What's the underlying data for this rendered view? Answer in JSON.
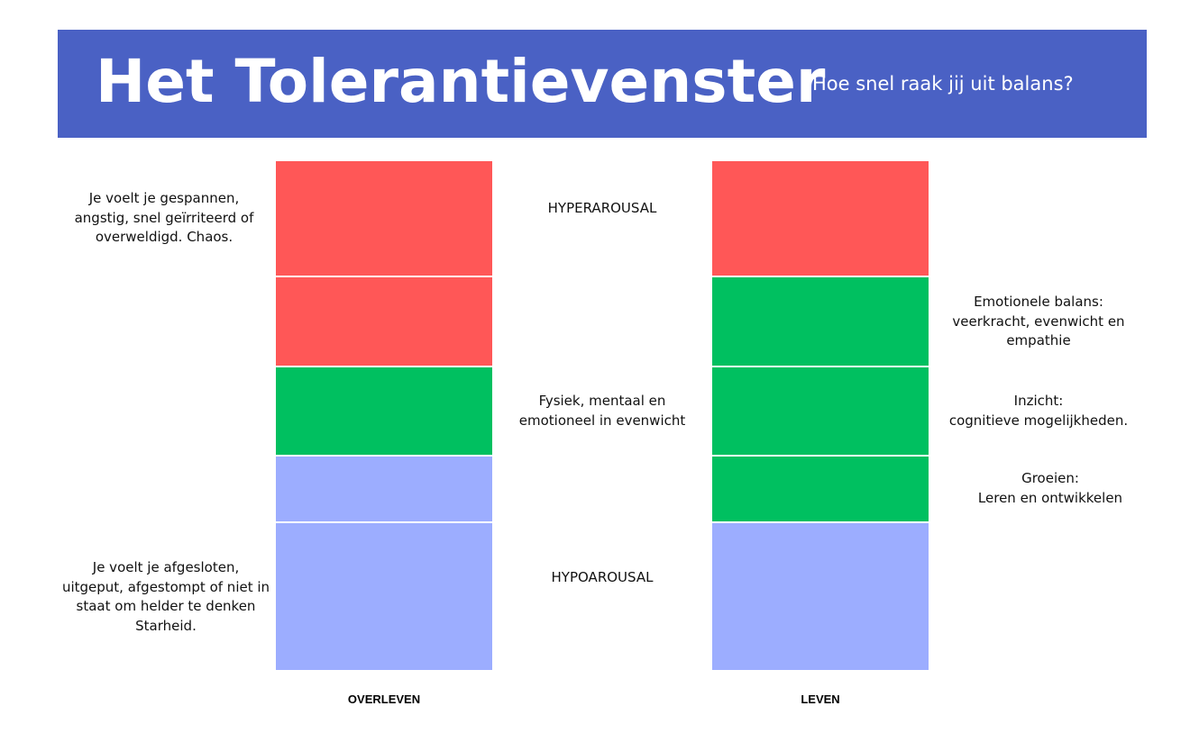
{
  "header": {
    "title": "Het Tolerantievenster",
    "subtitle": "Hoe snel raak jij uit balans?",
    "background": "#4a61c4"
  },
  "colors": {
    "hyper": "#ff5757",
    "window": "#00c060",
    "hypo": "#9cadff"
  },
  "columns": {
    "left": {
      "label": "OVERLEVEN",
      "segments": [
        "hyperarousal",
        "hyperarousal",
        "window",
        "hypoarousal",
        "hypoarousal"
      ]
    },
    "right": {
      "label": "LEVEN",
      "segments": [
        "hyperarousal",
        "window",
        "window",
        "window",
        "hypoarousal"
      ]
    }
  },
  "left_notes": {
    "hyper": "Je voelt je gespannen,\nangstig, snel geïrriteerd of\noverweldigd. Chaos.",
    "hypo": "Je voelt je afgesloten,\nuitgeput, afgestompt of niet in\nstaat om helder te denken\nStarheid."
  },
  "middle_labels": {
    "hyper": "HYPERAROUSAL",
    "window": "Fysiek, mentaal en\nemotioneel in evenwicht",
    "hypo": "HYPOAROUSAL"
  },
  "right_notes": {
    "balance": "Emotionele balans:\nveerkracht, evenwicht en\nempathie",
    "insight": "Inzicht:\ncognitieve mogelijkheden.",
    "growth": "Groeien:\nLeren en ontwikkelen"
  }
}
